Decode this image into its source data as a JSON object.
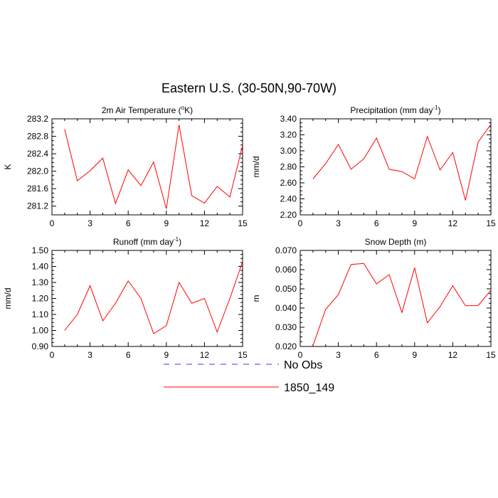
{
  "title": "Eastern U.S. (30-50N,90-70W)",
  "colors": {
    "model": "#ff0000",
    "obs": "#3333ff",
    "axis": "#000000"
  },
  "legend": {
    "placement": "bottom-center",
    "items": [
      {
        "label": "No Obs",
        "style": "dashed",
        "color": "#3333ff"
      },
      {
        "label": "1850_149",
        "style": "solid",
        "color": "#ff0000"
      }
    ]
  },
  "chart_data": [
    {
      "type": "line",
      "title_main": "2m Air Temperature (",
      "title_sup": "o",
      "title_tail": "K)",
      "ylabel": "K",
      "xlabel": "",
      "xlim": [
        0,
        15
      ],
      "ylim": [
        281.0,
        283.2
      ],
      "xticks": [
        0,
        3,
        6,
        9,
        12,
        15
      ],
      "yticks": [
        281.2,
        281.6,
        282.0,
        282.4,
        282.8,
        283.2
      ],
      "ytick_labels": [
        "281.2",
        "281.6",
        "282.0",
        "282.4",
        "282.8",
        "283.2"
      ],
      "grid": false,
      "series": [
        {
          "name": "1850_149",
          "color": "#ff0000",
          "x": [
            1,
            2,
            3,
            4,
            5,
            6,
            7,
            8,
            9,
            10,
            11,
            12,
            13,
            14,
            15
          ],
          "values": [
            282.96,
            281.78,
            282.01,
            282.3,
            281.26,
            282.03,
            281.67,
            282.21,
            281.14,
            283.06,
            281.44,
            281.27,
            281.65,
            281.41,
            282.59
          ]
        }
      ]
    },
    {
      "type": "line",
      "title_main": "Precipitation (mm day",
      "title_sup": "-1",
      "title_tail": ")",
      "ylabel": "mm/d",
      "xlabel": "",
      "xlim": [
        0,
        15
      ],
      "ylim": [
        2.2,
        3.4
      ],
      "xticks": [
        0,
        3,
        6,
        9,
        12,
        15
      ],
      "yticks": [
        2.2,
        2.4,
        2.6,
        2.8,
        3.0,
        3.2,
        3.4
      ],
      "ytick_labels": [
        "2.20",
        "2.40",
        "2.60",
        "2.80",
        "3.00",
        "3.20",
        "3.40"
      ],
      "grid": false,
      "series": [
        {
          "name": "1850_149",
          "color": "#ff0000",
          "x": [
            1,
            2,
            3,
            4,
            5,
            6,
            7,
            8,
            9,
            10,
            11,
            12,
            13,
            14,
            15
          ],
          "values": [
            2.65,
            2.84,
            3.08,
            2.77,
            2.9,
            3.16,
            2.77,
            2.74,
            2.65,
            3.18,
            2.76,
            2.98,
            2.38,
            3.11,
            3.33
          ]
        }
      ]
    },
    {
      "type": "line",
      "title_main": "Runoff (mm day",
      "title_sup": "-1",
      "title_tail": ")",
      "ylabel": "mm/d",
      "xlabel": "",
      "xlim": [
        0,
        15
      ],
      "ylim": [
        0.9,
        1.5
      ],
      "xticks": [
        0,
        3,
        6,
        9,
        12,
        15
      ],
      "yticks": [
        0.9,
        1.0,
        1.1,
        1.2,
        1.3,
        1.4,
        1.5
      ],
      "ytick_labels": [
        "0.90",
        "1.00",
        "1.10",
        "1.20",
        "1.30",
        "1.40",
        "1.50"
      ],
      "grid": false,
      "series": [
        {
          "name": "1850_149",
          "color": "#ff0000",
          "x": [
            1,
            2,
            3,
            4,
            5,
            6,
            7,
            8,
            9,
            10,
            11,
            12,
            13,
            14,
            15
          ],
          "values": [
            1.0,
            1.1,
            1.28,
            1.06,
            1.17,
            1.31,
            1.2,
            0.98,
            1.03,
            1.3,
            1.17,
            1.2,
            0.99,
            1.2,
            1.43
          ]
        }
      ]
    },
    {
      "type": "line",
      "title_main": "Snow Depth (m)",
      "title_sup": "",
      "title_tail": "",
      "ylabel": "m",
      "xlabel": "",
      "xlim": [
        0,
        15
      ],
      "ylim": [
        0.02,
        0.07
      ],
      "xticks": [
        0,
        3,
        6,
        9,
        12,
        15
      ],
      "yticks": [
        0.02,
        0.03,
        0.04,
        0.05,
        0.06,
        0.07
      ],
      "ytick_labels": [
        "0.020",
        "0.030",
        "0.040",
        "0.050",
        "0.060",
        "0.070"
      ],
      "grid": false,
      "series": [
        {
          "name": "1850_149",
          "color": "#ff0000",
          "x": [
            1,
            2,
            3,
            4,
            5,
            6,
            7,
            8,
            9,
            10,
            11,
            12,
            13,
            14,
            15
          ],
          "values": [
            0.0205,
            0.0393,
            0.047,
            0.0627,
            0.0632,
            0.0526,
            0.0574,
            0.0377,
            0.061,
            0.0323,
            0.0407,
            0.0516,
            0.0412,
            0.0413,
            0.0493
          ]
        }
      ]
    }
  ]
}
